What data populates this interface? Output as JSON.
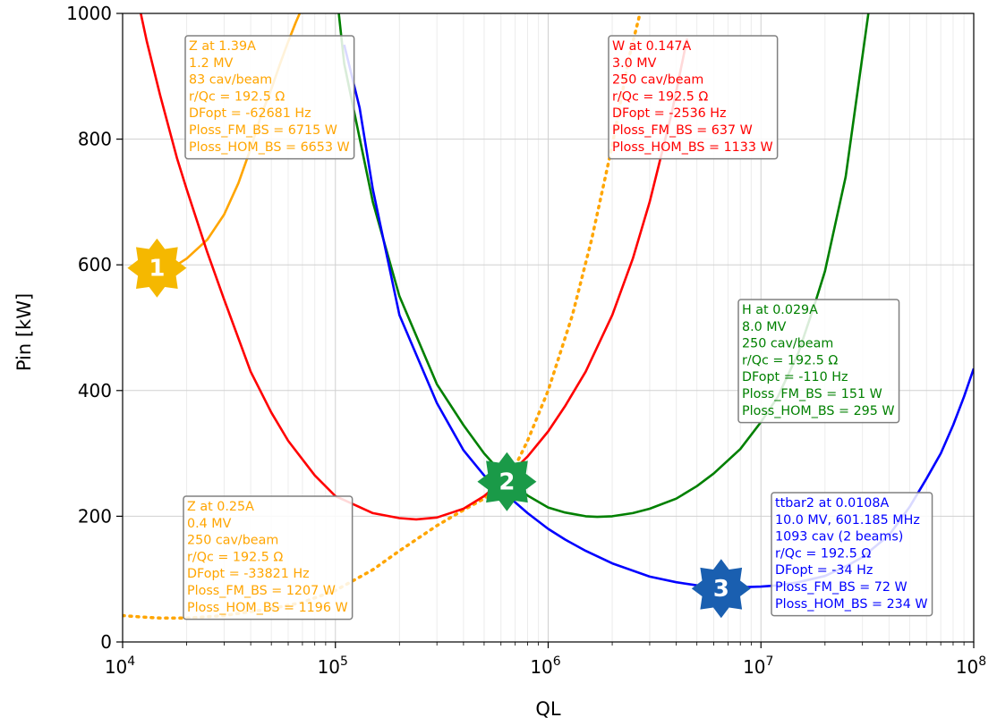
{
  "chart_data": {
    "type": "line",
    "title": "",
    "xlabel": "QL",
    "ylabel": "Pin [kW]",
    "x_scale": "log",
    "xlim": [
      10000,
      100000000
    ],
    "ylim": [
      0,
      1000
    ],
    "grid": true,
    "x_ticks": [
      {
        "value": 10000,
        "base": "10",
        "exp": "4"
      },
      {
        "value": 100000,
        "base": "10",
        "exp": "5"
      },
      {
        "value": 1000000,
        "base": "10",
        "exp": "6"
      },
      {
        "value": 10000000,
        "base": "10",
        "exp": "7"
      },
      {
        "value": 100000000,
        "base": "10",
        "exp": "8"
      }
    ],
    "y_ticks": [
      {
        "value": 0,
        "label": "0"
      },
      {
        "value": 200,
        "label": "200"
      },
      {
        "value": 400,
        "label": "400"
      },
      {
        "value": 600,
        "label": "600"
      },
      {
        "value": 800,
        "label": "800"
      },
      {
        "value": 1000,
        "label": "1000"
      }
    ],
    "series": [
      {
        "color": "#ffa500",
        "style": "solid",
        "x": [
          15000,
          16000,
          18000,
          20000,
          25000,
          30000,
          35000,
          40000,
          45000,
          50000,
          55000,
          60000,
          65000,
          70000
        ],
        "y": [
          593,
          595,
          600,
          610,
          640,
          680,
          730,
          785,
          840,
          880,
          920,
          955,
          985,
          1010
        ]
      },
      {
        "color": "#ffa500",
        "style": "dotted",
        "x": [
          10000,
          12000,
          15000,
          20000,
          30000,
          50000,
          70000,
          100000,
          150000,
          200000,
          300000,
          400000,
          500000,
          600000,
          700000,
          800000,
          1000000,
          1300000,
          1600000,
          2000000,
          2400000,
          2700000
        ],
        "y": [
          42,
          40,
          38,
          38,
          42,
          53,
          63,
          82,
          115,
          145,
          185,
          210,
          228,
          250,
          280,
          320,
          400,
          520,
          640,
          790,
          930,
          1000
        ]
      },
      {
        "color": "#ff0000",
        "style": "solid",
        "x": [
          12000,
          13000,
          15000,
          18000,
          20000,
          25000,
          30000,
          40000,
          50000,
          60000,
          80000,
          100000,
          150000,
          200000,
          240000,
          300000,
          400000,
          500000,
          600000,
          700000,
          800000,
          1000000,
          1200000,
          1500000,
          2000000,
          2500000,
          3000000,
          3800000,
          4500000
        ],
        "y": [
          1010,
          955,
          870,
          770,
          720,
          620,
          545,
          430,
          365,
          320,
          265,
          232,
          205,
          197,
          195,
          198,
          212,
          232,
          255,
          276,
          295,
          335,
          375,
          430,
          520,
          610,
          700,
          840,
          960
        ]
      },
      {
        "color": "#008000",
        "style": "solid",
        "x": [
          100000,
          110000,
          150000,
          200000,
          300000,
          400000,
          500000,
          600000,
          700000,
          800000,
          1000000,
          1200000,
          1500000,
          1700000,
          2000000,
          2500000,
          3000000,
          4000000,
          5000000,
          6000000,
          8000000,
          10000000,
          12000000,
          15000000,
          18000000,
          20000000,
          25000000,
          32000000
        ],
        "y": [
          1050,
          920,
          700,
          550,
          410,
          345,
          300,
          270,
          248,
          233,
          214,
          206,
          200,
          199,
          200,
          205,
          212,
          228,
          248,
          268,
          307,
          350,
          390,
          460,
          540,
          590,
          740,
          1000
        ]
      },
      {
        "color": "#0000ff",
        "style": "solid",
        "x": [
          110000,
          130000,
          150000,
          200000,
          300000,
          400000,
          500000,
          600000,
          700000,
          800000,
          1000000,
          1200000,
          1500000,
          2000000,
          3000000,
          4000000,
          5000000,
          6000000,
          7000000,
          8000000,
          10000000,
          12000000,
          15000000,
          20000000,
          25000000,
          30000000,
          40000000,
          50000000,
          60000000,
          70000000,
          80000000,
          90000000,
          100000000
        ],
        "y": [
          950,
          850,
          720,
          520,
          380,
          305,
          265,
          240,
          222,
          205,
          180,
          163,
          145,
          125,
          104,
          95,
          90,
          88,
          87,
          87,
          88,
          90,
          95,
          105,
          120,
          135,
          170,
          215,
          260,
          300,
          345,
          390,
          435
        ]
      }
    ],
    "annotations": [
      {
        "color": "#ffa500",
        "lines": [
          "Z at 1.39A",
          "1.2 MV",
          "83 cav/beam",
          "r/Qc = 192.5 Ω",
          "DFopt = -62681 Hz",
          "Ploss_FM_BS = 6715 W",
          "Ploss_HOM_BS = 6653 W"
        ]
      },
      {
        "color": "#ff0000",
        "lines": [
          "W at 0.147A",
          "3.0 MV",
          "250 cav/beam",
          "r/Qc = 192.5 Ω",
          "DFopt = -2536 Hz",
          "Ploss_FM_BS = 637 W",
          "Ploss_HOM_BS = 1133 W"
        ]
      },
      {
        "color": "#008000",
        "lines": [
          "H at 0.029A",
          "8.0 MV",
          "250 cav/beam",
          "r/Qc = 192.5 Ω",
          "DFopt = -110 Hz",
          "Ploss_FM_BS = 151 W",
          "Ploss_HOM_BS = 295 W"
        ]
      },
      {
        "color": "#ffa500",
        "lines": [
          "Z at 0.25A",
          "0.4 MV",
          "250 cav/beam",
          "r/Qc = 192.5 Ω",
          "DFopt = -33821 Hz",
          "Ploss_FM_BS = 1207 W",
          "Ploss_HOM_BS = 1196 W"
        ]
      },
      {
        "color": "#0000ff",
        "lines": [
          "ttbar2 at 0.0108A",
          "10.0 MV, 601.185 MHz",
          "1093 cav (2 beams)",
          "r/Qc = 192.5 Ω",
          "DFopt = -34 Hz",
          "Ploss_FM_BS = 72 W",
          "Ploss_HOM_BS = 234 W"
        ]
      }
    ],
    "markers": [
      {
        "label": "1",
        "color": "#f5b800",
        "x": 14500,
        "y": 595
      },
      {
        "label": "2",
        "color": "#1a9a48",
        "x": 640000,
        "y": 255
      },
      {
        "label": "3",
        "color": "#1a5fb0",
        "x": 6500000,
        "y": 85
      }
    ]
  }
}
